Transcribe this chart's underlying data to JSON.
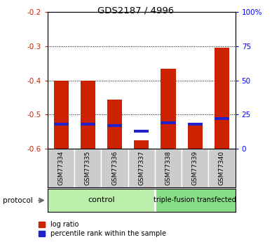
{
  "title": "GDS2187 / 4996",
  "samples": [
    "GSM77334",
    "GSM77335",
    "GSM77336",
    "GSM77337",
    "GSM77338",
    "GSM77339",
    "GSM77340"
  ],
  "log_ratio": [
    -0.4,
    -0.4,
    -0.455,
    -0.575,
    -0.365,
    -0.525,
    -0.305
  ],
  "percentile_rank": [
    18,
    18,
    17,
    13,
    19,
    18,
    22
  ],
  "ylim_left": [
    -0.6,
    -0.2
  ],
  "ylim_right": [
    0,
    100
  ],
  "yticks_left": [
    -0.6,
    -0.5,
    -0.4,
    -0.3,
    -0.2
  ],
  "yticks_right": [
    0,
    25,
    50,
    75,
    100
  ],
  "ytick_labels_right": [
    "0",
    "25",
    "50",
    "75",
    "100%"
  ],
  "bar_color": "#cc2200",
  "blue_color": "#2222cc",
  "control_label": "control",
  "treated_label": "triple-fusion transfected",
  "protocol_label": "protocol",
  "legend_log_ratio": "log ratio",
  "legend_percentile": "percentile rank within the sample",
  "n_control": 4,
  "n_treated": 3,
  "bar_width": 0.55
}
